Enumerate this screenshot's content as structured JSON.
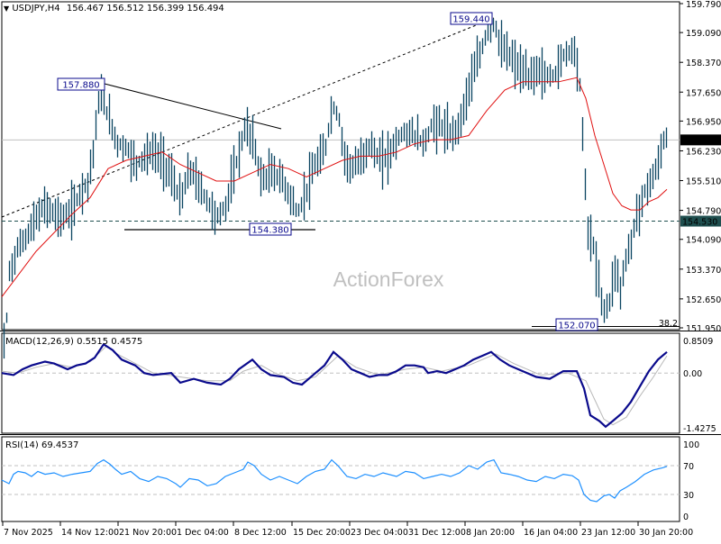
{
  "header": {
    "symbol": "USDJPY,H4",
    "ohlc": "156.467 156.512 156.399 156.494",
    "arrow": "▼"
  },
  "watermark": "ActionForex",
  "colors": {
    "bar": "#0b4561",
    "ma": "#e01010",
    "macd": "#0a0a8c",
    "signal": "#b8b8b8",
    "rsi": "#1e90ff",
    "tag_border": "#0a0a8c",
    "grid_dash": "#1f5050"
  },
  "chart_data": [
    {
      "type": "ohlc",
      "title": "USDJPY,H4 156.467 156.512 156.399 156.494",
      "ylim": [
        151.95,
        159.79
      ],
      "y_ticks": [
        "159.790",
        "159.090",
        "158.370",
        "157.650",
        "156.950",
        "156.230",
        "155.510",
        "154.790",
        "154.090",
        "153.370",
        "152.650",
        "151.950"
      ],
      "current_price": "156.494",
      "support_line_price": "154.530",
      "annotations": [
        {
          "label": "157.880",
          "kind": "high"
        },
        {
          "label": "159.440",
          "kind": "high"
        },
        {
          "label": "154.380",
          "kind": "low"
        },
        {
          "label": "152.070",
          "kind": "low"
        },
        {
          "label": "38.2",
          "kind": "fib"
        }
      ],
      "moving_average": "red line (trend MA)",
      "close_path": [
        [
          2,
          150.0
        ],
        [
          10,
          153.3
        ],
        [
          20,
          153.9
        ],
        [
          30,
          154.2
        ],
        [
          40,
          154.6
        ],
        [
          50,
          154.9
        ],
        [
          60,
          154.7
        ],
        [
          70,
          154.6
        ],
        [
          80,
          154.8
        ],
        [
          90,
          155.3
        ],
        [
          98,
          155.5
        ],
        [
          104,
          156.4
        ],
        [
          110,
          157.6
        ],
        [
          115,
          157.4
        ],
        [
          122,
          156.9
        ],
        [
          130,
          156.4
        ],
        [
          140,
          156.3
        ],
        [
          150,
          155.9
        ],
        [
          160,
          156.1
        ],
        [
          170,
          156.2
        ],
        [
          180,
          156.0
        ],
        [
          190,
          155.6
        ],
        [
          200,
          155.0
        ],
        [
          210,
          155.8
        ],
        [
          220,
          155.4
        ],
        [
          230,
          155.0
        ],
        [
          240,
          154.6
        ],
        [
          250,
          154.9
        ],
        [
          258,
          155.6
        ],
        [
          266,
          156.3
        ],
        [
          272,
          156.8
        ],
        [
          280,
          156.5
        ],
        [
          290,
          155.5
        ],
        [
          300,
          155.7
        ],
        [
          310,
          155.6
        ],
        [
          320,
          155.2
        ],
        [
          330,
          154.7
        ],
        [
          340,
          155.3
        ],
        [
          350,
          155.9
        ],
        [
          360,
          156.2
        ],
        [
          368,
          157.3
        ],
        [
          375,
          157.1
        ],
        [
          382,
          156.1
        ],
        [
          390,
          155.8
        ],
        [
          400,
          156.0
        ],
        [
          410,
          156.4
        ],
        [
          420,
          156.0
        ],
        [
          430,
          156.1
        ],
        [
          440,
          156.5
        ],
        [
          450,
          156.7
        ],
        [
          460,
          156.6
        ],
        [
          470,
          156.4
        ],
        [
          480,
          156.9
        ],
        [
          490,
          156.8
        ],
        [
          500,
          156.6
        ],
        [
          510,
          156.9
        ],
        [
          520,
          157.8
        ],
        [
          530,
          158.4
        ],
        [
          540,
          159.1
        ],
        [
          548,
          159.3
        ],
        [
          556,
          158.7
        ],
        [
          566,
          158.5
        ],
        [
          576,
          158.2
        ],
        [
          586,
          158.0
        ],
        [
          596,
          158.2
        ],
        [
          606,
          158.0
        ],
        [
          616,
          158.1
        ],
        [
          626,
          158.6
        ],
        [
          636,
          158.7
        ],
        [
          642,
          158.2
        ],
        [
          648,
          155.8
        ],
        [
          652,
          154.3
        ],
        [
          658,
          153.9
        ],
        [
          664,
          153.0
        ],
        [
          670,
          152.3
        ],
        [
          676,
          152.6
        ],
        [
          682,
          153.4
        ],
        [
          688,
          152.9
        ],
        [
          694,
          153.6
        ],
        [
          700,
          154.0
        ],
        [
          706,
          154.7
        ],
        [
          712,
          155.0
        ],
        [
          718,
          155.4
        ],
        [
          724,
          155.6
        ],
        [
          730,
          155.9
        ],
        [
          736,
          156.5
        ],
        [
          740,
          156.49
        ]
      ],
      "ma_path": [
        [
          2,
          152.7
        ],
        [
          40,
          153.8
        ],
        [
          80,
          154.7
        ],
        [
          100,
          155.1
        ],
        [
          120,
          155.8
        ],
        [
          140,
          156.0
        ],
        [
          160,
          156.1
        ],
        [
          180,
          156.2
        ],
        [
          200,
          155.9
        ],
        [
          220,
          155.7
        ],
        [
          240,
          155.5
        ],
        [
          260,
          155.5
        ],
        [
          280,
          155.7
        ],
        [
          300,
          155.9
        ],
        [
          320,
          155.8
        ],
        [
          340,
          155.6
        ],
        [
          360,
          155.8
        ],
        [
          380,
          156.0
        ],
        [
          400,
          156.1
        ],
        [
          420,
          156.1
        ],
        [
          440,
          156.2
        ],
        [
          460,
          156.4
        ],
        [
          480,
          156.5
        ],
        [
          500,
          156.5
        ],
        [
          520,
          156.6
        ],
        [
          540,
          157.2
        ],
        [
          560,
          157.7
        ],
        [
          580,
          157.9
        ],
        [
          600,
          157.9
        ],
        [
          620,
          157.9
        ],
        [
          640,
          158.0
        ],
        [
          650,
          157.5
        ],
        [
          660,
          156.6
        ],
        [
          670,
          155.9
        ],
        [
          680,
          155.2
        ],
        [
          690,
          154.9
        ],
        [
          700,
          154.8
        ],
        [
          710,
          154.8
        ],
        [
          720,
          155.0
        ],
        [
          730,
          155.1
        ],
        [
          740,
          155.3
        ]
      ]
    },
    {
      "type": "line",
      "title": "MACD(12,26,9) 0.5515 0.4575",
      "ylim": [
        -1.4275,
        0.8509
      ],
      "y_ticks": [
        "0.8509",
        "0.00",
        "-1.4275"
      ],
      "series": [
        {
          "name": "MACD",
          "value": 0.5515
        },
        {
          "name": "Signal",
          "value": 0.4575
        }
      ],
      "macd_path": [
        [
          2,
          0.0
        ],
        [
          15,
          -0.05
        ],
        [
          25,
          0.1
        ],
        [
          35,
          0.2
        ],
        [
          50,
          0.3
        ],
        [
          60,
          0.25
        ],
        [
          75,
          0.1
        ],
        [
          85,
          0.2
        ],
        [
          95,
          0.25
        ],
        [
          105,
          0.4
        ],
        [
          115,
          0.75
        ],
        [
          125,
          0.6
        ],
        [
          135,
          0.35
        ],
        [
          150,
          0.2
        ],
        [
          160,
          0.0
        ],
        [
          170,
          -0.05
        ],
        [
          190,
          0.0
        ],
        [
          200,
          -0.25
        ],
        [
          215,
          -0.15
        ],
        [
          230,
          -0.25
        ],
        [
          245,
          -0.3
        ],
        [
          255,
          -0.15
        ],
        [
          265,
          0.1
        ],
        [
          280,
          0.35
        ],
        [
          290,
          0.1
        ],
        [
          300,
          -0.05
        ],
        [
          315,
          -0.1
        ],
        [
          325,
          -0.25
        ],
        [
          335,
          -0.3
        ],
        [
          350,
          0.0
        ],
        [
          360,
          0.2
        ],
        [
          370,
          0.55
        ],
        [
          380,
          0.35
        ],
        [
          390,
          0.1
        ],
        [
          400,
          0.0
        ],
        [
          410,
          -0.1
        ],
        [
          420,
          -0.05
        ],
        [
          430,
          -0.05
        ],
        [
          440,
          0.05
        ],
        [
          450,
          0.2
        ],
        [
          460,
          0.2
        ],
        [
          470,
          0.15
        ],
        [
          475,
          0.0
        ],
        [
          485,
          0.05
        ],
        [
          495,
          0.0
        ],
        [
          505,
          0.1
        ],
        [
          515,
          0.2
        ],
        [
          525,
          0.35
        ],
        [
          535,
          0.45
        ],
        [
          545,
          0.55
        ],
        [
          555,
          0.35
        ],
        [
          565,
          0.2
        ],
        [
          580,
          0.05
        ],
        [
          595,
          -0.1
        ],
        [
          610,
          -0.15
        ],
        [
          625,
          0.05
        ],
        [
          640,
          0.05
        ],
        [
          648,
          -0.4
        ],
        [
          655,
          -1.1
        ],
        [
          665,
          -1.25
        ],
        [
          672,
          -1.4
        ],
        [
          680,
          -1.25
        ],
        [
          690,
          -1.05
        ],
        [
          700,
          -0.75
        ],
        [
          710,
          -0.35
        ],
        [
          720,
          0.05
        ],
        [
          730,
          0.35
        ],
        [
          740,
          0.55
        ]
      ],
      "signal_path": [
        [
          2,
          0.05
        ],
        [
          20,
          0.0
        ],
        [
          40,
          0.15
        ],
        [
          60,
          0.25
        ],
        [
          80,
          0.15
        ],
        [
          100,
          0.3
        ],
        [
          118,
          0.7
        ],
        [
          130,
          0.5
        ],
        [
          150,
          0.25
        ],
        [
          170,
          0.0
        ],
        [
          200,
          -0.1
        ],
        [
          230,
          -0.2
        ],
        [
          255,
          -0.2
        ],
        [
          270,
          0.05
        ],
        [
          290,
          0.2
        ],
        [
          305,
          0.0
        ],
        [
          330,
          -0.2
        ],
        [
          350,
          -0.1
        ],
        [
          375,
          0.45
        ],
        [
          395,
          0.15
        ],
        [
          420,
          -0.05
        ],
        [
          450,
          0.1
        ],
        [
          470,
          0.15
        ],
        [
          490,
          0.05
        ],
        [
          520,
          0.2
        ],
        [
          550,
          0.5
        ],
        [
          570,
          0.25
        ],
        [
          600,
          -0.05
        ],
        [
          630,
          0.0
        ],
        [
          650,
          -0.2
        ],
        [
          660,
          -0.7
        ],
        [
          670,
          -1.2
        ],
        [
          680,
          -1.35
        ],
        [
          695,
          -1.15
        ],
        [
          710,
          -0.6
        ],
        [
          725,
          -0.1
        ],
        [
          740,
          0.45
        ]
      ]
    },
    {
      "type": "line",
      "title": "RSI(14) 69.4537",
      "ylim": [
        0,
        100
      ],
      "y_ticks": [
        "100",
        "70",
        "30",
        "0"
      ],
      "levels": [
        70,
        30
      ],
      "value": 69.4537,
      "rsi_path": [
        [
          2,
          50
        ],
        [
          10,
          45
        ],
        [
          15,
          58
        ],
        [
          20,
          62
        ],
        [
          28,
          60
        ],
        [
          35,
          55
        ],
        [
          42,
          62
        ],
        [
          50,
          58
        ],
        [
          60,
          60
        ],
        [
          70,
          55
        ],
        [
          80,
          58
        ],
        [
          90,
          60
        ],
        [
          100,
          62
        ],
        [
          108,
          73
        ],
        [
          115,
          78
        ],
        [
          122,
          72
        ],
        [
          128,
          65
        ],
        [
          135,
          58
        ],
        [
          145,
          62
        ],
        [
          155,
          52
        ],
        [
          165,
          48
        ],
        [
          175,
          55
        ],
        [
          185,
          52
        ],
        [
          195,
          45
        ],
        [
          200,
          40
        ],
        [
          210,
          52
        ],
        [
          220,
          50
        ],
        [
          230,
          42
        ],
        [
          240,
          45
        ],
        [
          250,
          55
        ],
        [
          260,
          60
        ],
        [
          270,
          65
        ],
        [
          275,
          75
        ],
        [
          282,
          70
        ],
        [
          290,
          58
        ],
        [
          300,
          50
        ],
        [
          310,
          55
        ],
        [
          320,
          50
        ],
        [
          330,
          45
        ],
        [
          340,
          55
        ],
        [
          350,
          62
        ],
        [
          360,
          65
        ],
        [
          368,
          78
        ],
        [
          375,
          70
        ],
        [
          385,
          55
        ],
        [
          395,
          52
        ],
        [
          405,
          58
        ],
        [
          415,
          55
        ],
        [
          425,
          60
        ],
        [
          440,
          55
        ],
        [
          450,
          62
        ],
        [
          460,
          60
        ],
        [
          470,
          52
        ],
        [
          480,
          55
        ],
        [
          490,
          58
        ],
        [
          500,
          55
        ],
        [
          510,
          60
        ],
        [
          520,
          70
        ],
        [
          530,
          65
        ],
        [
          540,
          75
        ],
        [
          548,
          78
        ],
        [
          556,
          60
        ],
        [
          565,
          58
        ],
        [
          575,
          55
        ],
        [
          585,
          50
        ],
        [
          595,
          48
        ],
        [
          605,
          55
        ],
        [
          615,
          52
        ],
        [
          625,
          58
        ],
        [
          635,
          56
        ],
        [
          642,
          50
        ],
        [
          648,
          30
        ],
        [
          655,
          22
        ],
        [
          662,
          20
        ],
        [
          670,
          28
        ],
        [
          676,
          30
        ],
        [
          682,
          25
        ],
        [
          688,
          35
        ],
        [
          695,
          40
        ],
        [
          705,
          48
        ],
        [
          715,
          58
        ],
        [
          725,
          64
        ],
        [
          735,
          67
        ],
        [
          740,
          69
        ]
      ]
    }
  ],
  "x_axis": {
    "labels": [
      "7 Nov 2025",
      "14 Nov 12:00",
      "21 Nov 20:00",
      "1 Dec 04:00",
      "8 Dec 12:00",
      "15 Dec 20:00",
      "23 Dec 04:00",
      "31 Dec 12:00",
      "8 Jan 20:00",
      "16 Jan 04:00",
      "23 Jan 12:00",
      "30 Jan 20:00"
    ]
  }
}
